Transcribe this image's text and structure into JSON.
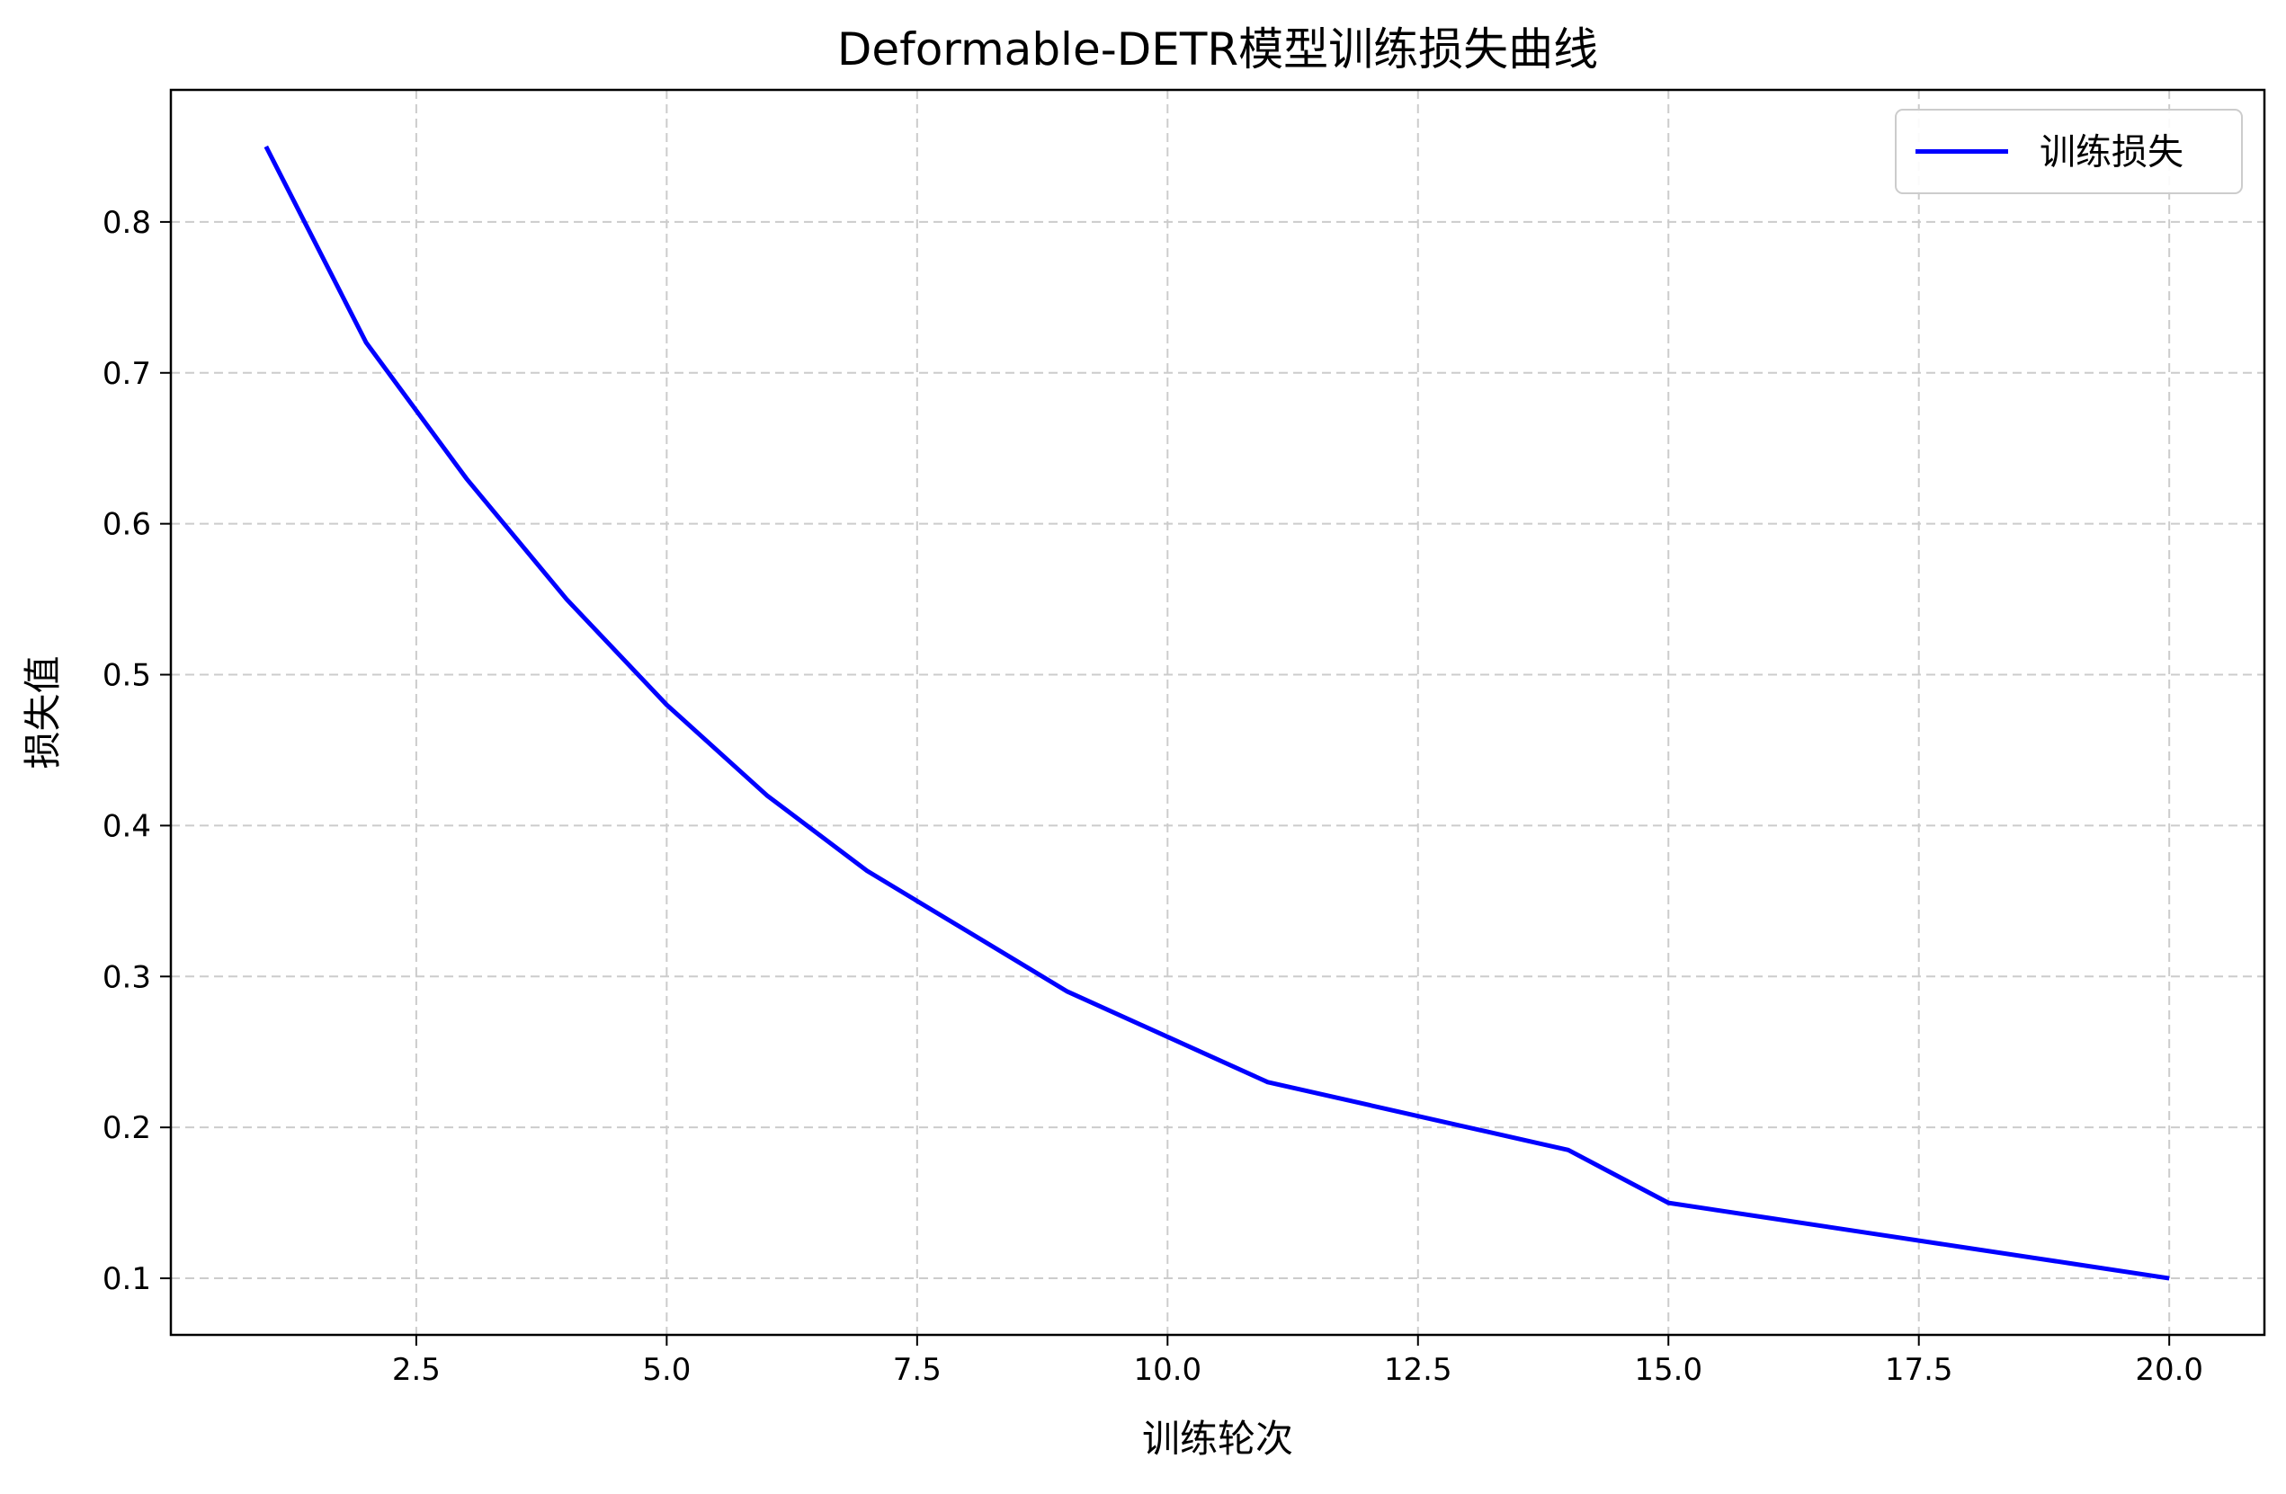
{
  "chart_data": {
    "type": "line",
    "title": "Deformable-DETR模型训练损失曲线",
    "xlabel": "训练轮次",
    "ylabel": "损失值",
    "x": [
      1,
      2,
      3,
      4,
      5,
      6,
      7,
      8,
      9,
      10,
      11,
      12,
      13,
      14,
      15,
      16,
      17,
      18,
      19,
      20
    ],
    "series": [
      {
        "name": "训练损失",
        "color": "#0000ff",
        "values": [
          0.85,
          0.72,
          0.63,
          0.55,
          0.48,
          0.42,
          0.37,
          0.33,
          0.29,
          0.26,
          0.23,
          0.215,
          0.2,
          0.185,
          0.15,
          0.14,
          0.13,
          0.12,
          0.11,
          0.1
        ]
      }
    ],
    "xlim": [
      0.05,
      20.95
    ],
    "ylim": [
      0.0625,
      0.8875
    ],
    "xticks": [
      2.5,
      5.0,
      7.5,
      10.0,
      12.5,
      15.0,
      17.5,
      20.0
    ],
    "xtick_labels": [
      "2.5",
      "5.0",
      "7.5",
      "10.0",
      "12.5",
      "15.0",
      "17.5",
      "20.0"
    ],
    "yticks": [
      0.1,
      0.2,
      0.3,
      0.4,
      0.5,
      0.6,
      0.7,
      0.8
    ],
    "ytick_labels": [
      "0.1",
      "0.2",
      "0.3",
      "0.4",
      "0.5",
      "0.6",
      "0.7",
      "0.8"
    ],
    "grid": true,
    "grid_style": "dashed",
    "grid_color": "#cccccc",
    "legend_position": "top-right"
  }
}
